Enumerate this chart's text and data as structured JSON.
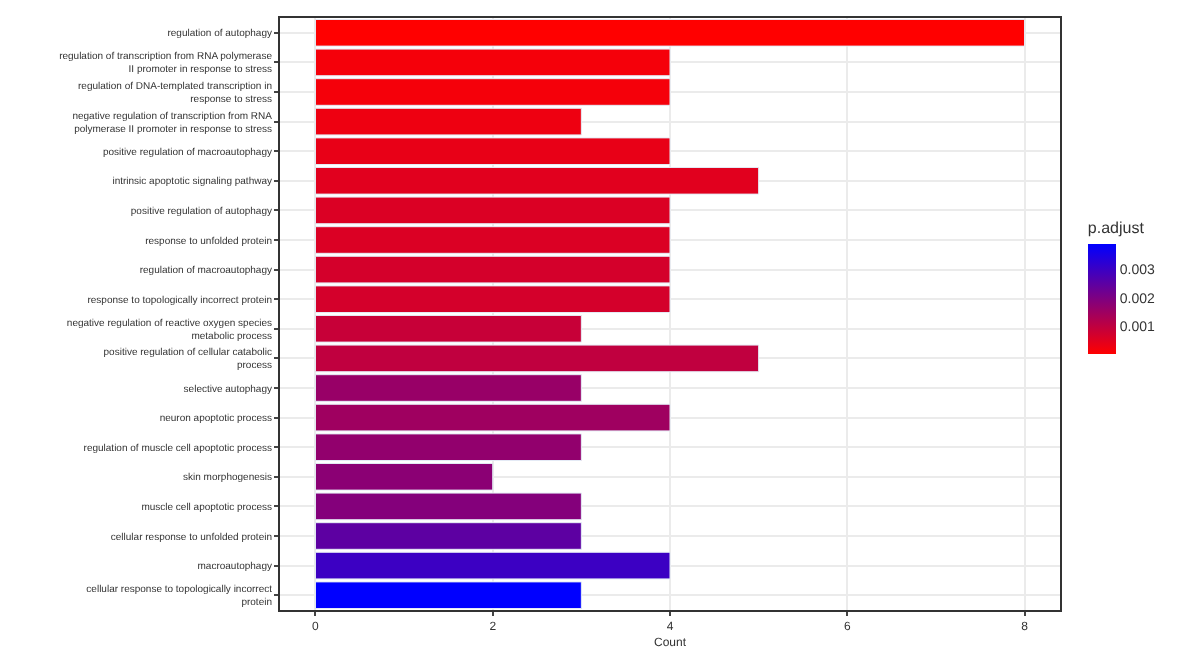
{
  "chart_data": {
    "type": "bar",
    "orientation": "horizontal",
    "xlabel": "Count",
    "clabel": "p.adjust",
    "categories": [
      "regulation of autophagy",
      "regulation of transcription from RNA polymerase II promoter in response to stress",
      "regulation of DNA-templated transcription in response to stress",
      "negative regulation of transcription from RNA polymerase II promoter in response to stress",
      "positive regulation of macroautophagy",
      "intrinsic apoptotic signaling pathway",
      "positive regulation of autophagy",
      "response to unfolded protein",
      "regulation of macroautophagy",
      "response to topologically incorrect protein",
      "negative regulation of reactive oxygen species metabolic process",
      "positive regulation of cellular catabolic process",
      "selective autophagy",
      "neuron apoptotic process",
      "regulation of muscle cell apoptotic process",
      "skin morphogenesis",
      "muscle cell apoptotic process",
      "cellular response to unfolded protein",
      "macroautophagy",
      "cellular response to topologically incorrect protein"
    ],
    "values": [
      8,
      4,
      4,
      3,
      4,
      5,
      4,
      4,
      4,
      4,
      3,
      5,
      3,
      4,
      3,
      2,
      3,
      3,
      4,
      3
    ],
    "cvalues": [
      5e-05,
      0.0002,
      0.0002,
      0.0003,
      0.0004,
      0.0005,
      0.0006,
      0.0006,
      0.0007,
      0.0007,
      0.0009,
      0.001,
      0.0016,
      0.0015,
      0.0017,
      0.0018,
      0.0019,
      0.0025,
      0.003,
      0.0039
    ],
    "clim": [
      5e-05,
      0.0039
    ],
    "cticks": [
      0.001,
      0.002,
      0.003
    ],
    "xlim": [
      -0.4,
      8.4
    ],
    "xticks": [
      0,
      2,
      4,
      6,
      8
    ],
    "grid": true
  }
}
